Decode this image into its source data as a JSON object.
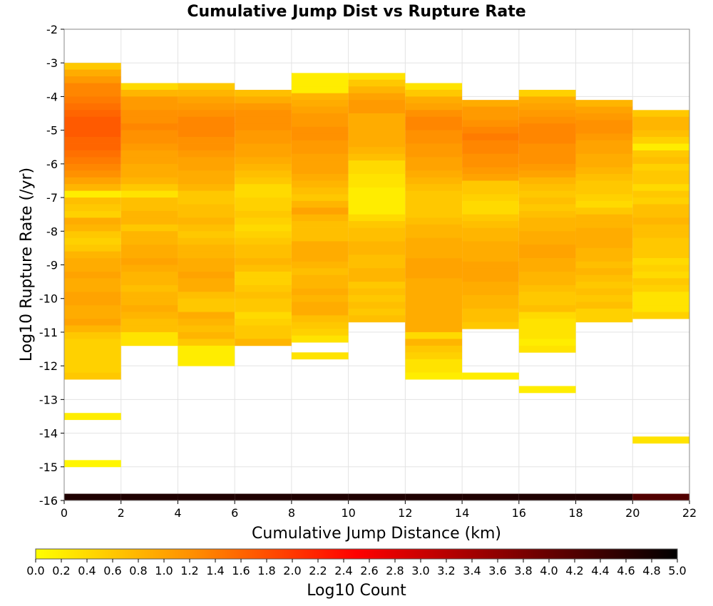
{
  "chart_data": {
    "type": "heatmap",
    "title": "Cumulative Jump Dist vs Rupture Rate",
    "xlabel": "Cumulative Jump Distance (km)",
    "ylabel": "Log10 Rupture Rate (/yr)",
    "xlim": [
      0,
      22
    ],
    "ylim": [
      -16,
      -2
    ],
    "x_ticks": [
      "0",
      "2",
      "4",
      "6",
      "8",
      "10",
      "12",
      "14",
      "16",
      "18",
      "20",
      "22"
    ],
    "y_ticks": [
      "-2",
      "-3",
      "-4",
      "-5",
      "-6",
      "-7",
      "-8",
      "-9",
      "-10",
      "-11",
      "-12",
      "-13",
      "-14",
      "-15",
      "-16"
    ],
    "x_bin_edges": [
      0,
      2,
      4,
      6,
      8,
      10,
      12,
      14,
      16,
      18,
      20,
      22
    ],
    "y_bin_size": 0.2,
    "grid": true,
    "colorbar": {
      "label": "Log10 Count",
      "range": [
        0.0,
        5.0
      ],
      "ticks": [
        "0.0",
        "0.2",
        "0.4",
        "0.6",
        "0.8",
        "1.0",
        "1.2",
        "1.4",
        "1.6",
        "1.8",
        "2.0",
        "2.2",
        "2.4",
        "2.6",
        "2.8",
        "3.0",
        "3.2",
        "3.4",
        "3.6",
        "3.8",
        "4.0",
        "4.2",
        "4.4",
        "4.6",
        "4.8",
        "5.0"
      ],
      "colors": [
        "#ffff00",
        "#ff8c00",
        "#ff0000",
        "#800000",
        "#000000"
      ]
    },
    "cells": [
      {
        "bin": 0,
        "y_top": -3.0,
        "log_counts": [
          0.6,
          0.9,
          1.1,
          1.3,
          1.3,
          1.4,
          1.5,
          1.6,
          1.7,
          1.7,
          1.7,
          1.6,
          1.6,
          1.5,
          1.4,
          1.3,
          1.2,
          1.0,
          0.8,
          0.2,
          0.7,
          0.6,
          0.5,
          0.9,
          0.8,
          0.6,
          0.5,
          0.6,
          0.8,
          0.9,
          0.9,
          1.0,
          0.9,
          0.9,
          1.0,
          1.0,
          0.9,
          0.9,
          1.0,
          0.8,
          0.6,
          0.5,
          0.5,
          0.5,
          0.5,
          0.5,
          0.6
        ]
      },
      {
        "bin": 0,
        "y_top": -13.4,
        "log_counts": [
          0.2
        ]
      },
      {
        "bin": 0,
        "y_top": -14.8,
        "log_counts": [
          0.1
        ]
      },
      {
        "bin": 1,
        "y_top": -3.6,
        "log_counts": [
          0.4,
          0.8,
          1.1,
          1.1,
          1.2,
          1.2,
          1.3,
          1.2,
          1.2,
          1.1,
          1.0,
          1.0,
          0.9,
          0.9,
          0.8,
          0.6,
          0.3,
          0.7,
          0.7,
          0.8,
          0.8,
          0.6,
          0.8,
          0.8,
          0.9,
          0.9,
          1.0,
          0.9,
          0.8,
          0.8,
          0.7,
          0.8,
          0.8,
          0.9,
          0.8,
          0.7,
          0.7,
          0.3,
          0.3
        ]
      },
      {
        "bin": 2,
        "y_top": -3.6,
        "log_counts": [
          0.6,
          0.8,
          1.0,
          1.1,
          1.2,
          1.3,
          1.3,
          1.3,
          1.2,
          1.2,
          1.1,
          1.0,
          1.0,
          0.9,
          0.9,
          0.8,
          0.6,
          0.6,
          0.7,
          0.7,
          0.8,
          0.7,
          0.6,
          0.7,
          0.8,
          0.8,
          0.9,
          0.9,
          1.0,
          0.9,
          0.9,
          0.7,
          0.6,
          0.6,
          0.9,
          0.8,
          0.7,
          0.8,
          0.6,
          0.2,
          0.2,
          0.2
        ]
      },
      {
        "bin": 3,
        "y_top": -3.8,
        "log_counts": [
          0.7,
          0.9,
          1.1,
          1.2,
          1.2,
          1.2,
          1.1,
          1.1,
          1.0,
          1.0,
          0.9,
          0.8,
          0.7,
          0.6,
          0.4,
          0.4,
          0.5,
          0.5,
          0.6,
          0.5,
          0.4,
          0.5,
          0.6,
          0.7,
          0.7,
          0.8,
          0.7,
          0.5,
          0.5,
          0.6,
          0.7,
          0.6,
          0.6,
          0.4,
          0.5,
          0.6,
          0.6,
          0.8
        ]
      },
      {
        "bin": 4,
        "y_top": -3.3,
        "log_counts": [
          0.2,
          0.2,
          0.2,
          0.8,
          0.9,
          1.0,
          1.1,
          1.1,
          1.2,
          1.2,
          1.1,
          1.1,
          1.0,
          1.0,
          1.0,
          0.9,
          0.8,
          0.7,
          0.6,
          0.8,
          1.0,
          0.8,
          0.7,
          0.7,
          0.7,
          0.9,
          0.9,
          0.9,
          0.8,
          0.7,
          0.8,
          0.8,
          0.9,
          0.8,
          0.9,
          0.9,
          0.7,
          0.6,
          0.5,
          0.3
        ]
      },
      {
        "bin": 4,
        "y_top": -11.6,
        "log_counts": [
          0.3
        ]
      },
      {
        "bin": 5,
        "y_top": -3.3,
        "log_counts": [
          0.3,
          0.6,
          0.8,
          1.0,
          1.1,
          1.1,
          0.9,
          0.9,
          0.9,
          0.9,
          0.9,
          0.8,
          0.7,
          0.4,
          0.4,
          0.3,
          0.3,
          0.2,
          0.2,
          0.2,
          0.2,
          0.4,
          0.6,
          0.7,
          0.7,
          0.8,
          0.8,
          0.7,
          0.7,
          0.8,
          0.8,
          0.6,
          0.7,
          0.6,
          0.7,
          0.6,
          0.7
        ]
      },
      {
        "bin": 6,
        "y_top": -3.6,
        "log_counts": [
          0.3,
          0.6,
          0.9,
          1.0,
          1.2,
          1.3,
          1.3,
          1.2,
          1.2,
          1.1,
          1.1,
          1.0,
          1.0,
          0.9,
          0.8,
          0.7,
          0.6,
          0.6,
          0.6,
          0.6,
          0.7,
          0.8,
          0.8,
          0.9,
          0.9,
          0.9,
          1.0,
          1.0,
          1.0,
          0.9,
          0.9,
          0.9,
          0.9,
          0.9,
          0.9,
          0.9,
          0.9,
          0.4,
          0.8,
          0.6,
          0.5,
          0.3,
          0.3
        ]
      },
      {
        "bin": 6,
        "y_top": -12.2,
        "log_counts": [
          0.2
        ]
      },
      {
        "bin": 7,
        "y_top": -4.1,
        "log_counts": [
          0.9,
          1.1,
          1.1,
          1.2,
          1.3,
          1.4,
          1.3,
          1.3,
          1.2,
          1.2,
          1.1,
          1.0,
          0.6,
          0.6,
          0.5,
          0.4,
          0.4,
          0.6,
          0.7,
          0.8,
          0.8,
          0.9,
          0.9,
          0.9,
          1.0,
          1.0,
          1.0,
          0.9,
          0.9,
          0.8,
          0.8,
          0.7,
          0.7,
          0.6
        ]
      },
      {
        "bin": 7,
        "y_top": -12.2,
        "log_counts": [
          0.2
        ]
      },
      {
        "bin": 8,
        "y_top": -3.8,
        "log_counts": [
          0.5,
          0.9,
          1.0,
          1.1,
          1.2,
          1.3,
          1.3,
          1.3,
          1.2,
          1.2,
          1.2,
          1.1,
          1.0,
          0.8,
          0.7,
          0.6,
          0.7,
          0.6,
          0.7,
          0.8,
          0.8,
          0.9,
          0.9,
          1.0,
          1.0,
          0.9,
          0.9,
          0.8,
          0.8,
          0.7,
          0.6,
          0.6,
          0.7,
          0.4,
          0.3,
          0.3,
          0.3,
          0.2,
          0.3
        ]
      },
      {
        "bin": 8,
        "y_top": -12.6,
        "log_counts": [
          0.2
        ]
      },
      {
        "bin": 9,
        "y_top": -4.1,
        "log_counts": [
          0.8,
          1.0,
          1.1,
          1.2,
          1.2,
          1.1,
          1.0,
          1.0,
          0.9,
          0.9,
          0.8,
          0.7,
          0.6,
          0.6,
          0.5,
          0.4,
          0.6,
          0.8,
          0.8,
          0.9,
          0.9,
          0.9,
          0.8,
          0.8,
          0.7,
          0.8,
          0.7,
          0.6,
          0.7,
          0.6,
          0.7,
          0.5,
          0.5
        ]
      },
      {
        "bin": 10,
        "y_top": -4.4,
        "log_counts": [
          0.6,
          0.8,
          0.8,
          0.7,
          0.5,
          0.2,
          0.6,
          0.7,
          0.5,
          0.6,
          0.6,
          0.4,
          0.6,
          0.5,
          0.7,
          0.7,
          0.8,
          0.7,
          0.7,
          0.6,
          0.6,
          0.6,
          0.4,
          0.5,
          0.4,
          0.6,
          0.5,
          0.3,
          0.3,
          0.3,
          0.5
        ]
      },
      {
        "bin": 10,
        "y_top": -14.1,
        "log_counts": [
          0.3
        ]
      }
    ]
  }
}
